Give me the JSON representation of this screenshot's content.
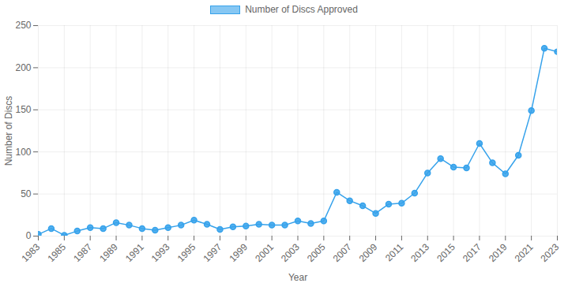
{
  "chart_data": {
    "type": "line",
    "xlabel": "Year",
    "ylabel": "Number of Discs",
    "x": [
      1983,
      1984,
      1985,
      1986,
      1987,
      1988,
      1989,
      1990,
      1991,
      1992,
      1993,
      1994,
      1995,
      1996,
      1997,
      1998,
      1999,
      2000,
      2001,
      2002,
      2003,
      2004,
      2005,
      2006,
      2007,
      2008,
      2009,
      2010,
      2011,
      2012,
      2013,
      2014,
      2015,
      2016,
      2017,
      2018,
      2019,
      2020,
      2021,
      2022,
      2023
    ],
    "series": [
      {
        "name": "Number of Discs Approved",
        "color": "#36a2eb",
        "marker": "circle",
        "values": [
          2,
          9,
          1,
          6,
          10,
          9,
          16,
          13,
          9,
          7,
          10,
          13,
          19,
          14,
          8,
          11,
          12,
          14,
          13,
          13,
          18,
          15,
          18,
          52,
          42,
          36,
          27,
          38,
          39,
          51,
          75,
          92,
          82,
          81,
          110,
          87,
          74,
          96,
          149,
          223,
          219
        ]
      }
    ],
    "xlim": [
      1983,
      2023
    ],
    "xticks": [
      1983,
      1985,
      1987,
      1989,
      1991,
      1993,
      1995,
      1997,
      1999,
      2001,
      2003,
      2005,
      2007,
      2009,
      2011,
      2013,
      2015,
      2017,
      2019,
      2021,
      2023
    ],
    "ylim": [
      0,
      250
    ],
    "yticks": [
      0,
      50,
      100,
      150,
      200,
      250
    ],
    "grid": true,
    "legend": "top"
  }
}
